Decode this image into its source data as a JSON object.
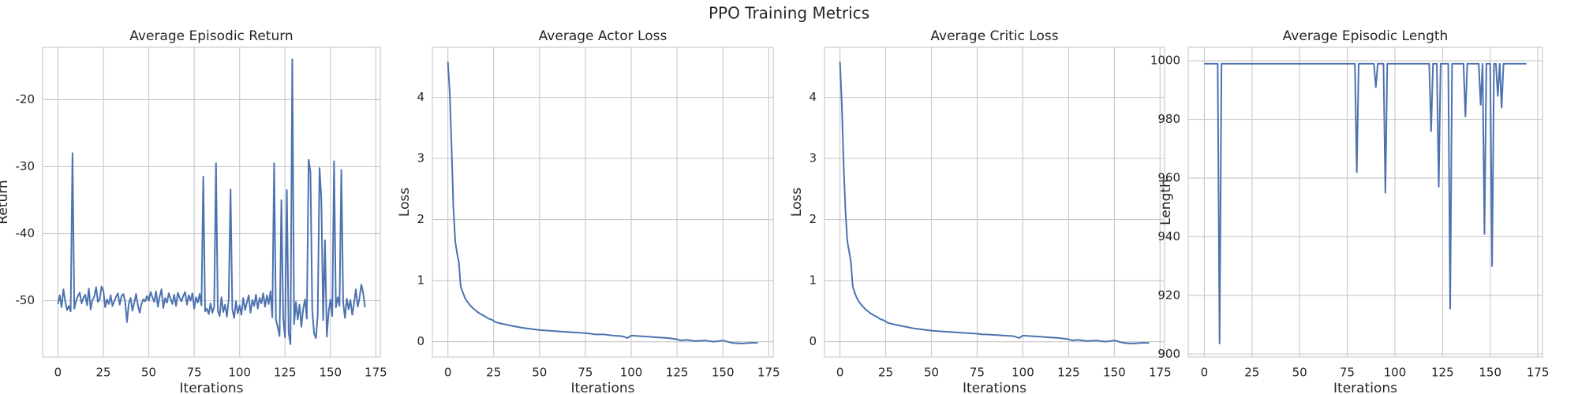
{
  "title": "PPO Training Metrics",
  "chart_data": [
    {
      "type": "line",
      "title": "Average Episodic Return",
      "xlabel": "Iterations",
      "ylabel": "Return",
      "xlim": [
        -8.45,
        177.45
      ],
      "xticks": [
        0,
        25,
        50,
        75,
        100,
        125,
        150,
        175
      ],
      "ylim": [
        -58.4,
        -12.2
      ],
      "yticks": [
        -50,
        -40,
        -30,
        -20
      ],
      "grid": true,
      "x": [
        0,
        1,
        2,
        3,
        4,
        5,
        6,
        7,
        8,
        9,
        10,
        11,
        12,
        13,
        14,
        15,
        16,
        17,
        18,
        19,
        20,
        21,
        22,
        23,
        24,
        25,
        26,
        27,
        28,
        29,
        30,
        31,
        32,
        33,
        34,
        35,
        36,
        37,
        38,
        39,
        40,
        41,
        42,
        43,
        44,
        45,
        46,
        47,
        48,
        49,
        50,
        51,
        52,
        53,
        54,
        55,
        56,
        57,
        58,
        59,
        60,
        61,
        62,
        63,
        64,
        65,
        66,
        67,
        68,
        69,
        70,
        71,
        72,
        73,
        74,
        75,
        76,
        77,
        78,
        79,
        80,
        81,
        82,
        83,
        84,
        85,
        86,
        87,
        88,
        89,
        90,
        91,
        92,
        93,
        94,
        95,
        96,
        97,
        98,
        99,
        100,
        101,
        102,
        103,
        104,
        105,
        106,
        107,
        108,
        109,
        110,
        111,
        112,
        113,
        114,
        115,
        116,
        117,
        118,
        119,
        120,
        121,
        122,
        123,
        124,
        125,
        126,
        127,
        128,
        129,
        130,
        131,
        132,
        133,
        134,
        135,
        136,
        137,
        138,
        139,
        140,
        141,
        142,
        143,
        144,
        145,
        146,
        147,
        148,
        149,
        150,
        151,
        152,
        153,
        154,
        155,
        156,
        157,
        158,
        159,
        160,
        161,
        162,
        163,
        164,
        165,
        166,
        167,
        168,
        169
      ],
      "series": [
        {
          "color": "#4c72b0",
          "values": [
            -50.5,
            -49.2,
            -51.0,
            -48.3,
            -50.1,
            -51.4,
            -50.8,
            -51.6,
            -28.0,
            -51.2,
            -50.0,
            -49.3,
            -48.8,
            -50.4,
            -49.6,
            -49.1,
            -50.7,
            -48.2,
            -51.3,
            -49.9,
            -49.4,
            -48.0,
            -50.2,
            -49.7,
            -47.9,
            -48.5,
            -51.0,
            -49.8,
            -50.5,
            -49.2,
            -50.8,
            -50.1,
            -49.4,
            -48.9,
            -50.6,
            -49.3,
            -49.0,
            -50.2,
            -53.2,
            -50.4,
            -49.6,
            -51.5,
            -50.3,
            -49.0,
            -50.7,
            -51.8,
            -50.5,
            -49.8,
            -50.1,
            -49.3,
            -50.0,
            -48.7,
            -49.5,
            -50.2,
            -48.6,
            -50.9,
            -49.4,
            -48.3,
            -51.1,
            -49.6,
            -50.3,
            -48.9,
            -49.7,
            -50.5,
            -49.1,
            -50.8,
            -48.8,
            -49.6,
            -50.1,
            -49.3,
            -48.7,
            -50.6,
            -49.2,
            -50.0,
            -48.9,
            -51.2,
            -49.5,
            -50.3,
            -49.0,
            -50.7,
            -31.5,
            -51.6,
            -51.2,
            -52.0,
            -50.4,
            -51.8,
            -50.9,
            -29.5,
            -51.5,
            -52.3,
            -49.5,
            -51.7,
            -50.6,
            -52.4,
            -49.8,
            -33.4,
            -51.3,
            -52.6,
            -50.1,
            -51.9,
            -50.7,
            -52.1,
            -49.6,
            -51.4,
            -50.3,
            -49.2,
            -51.8,
            -49.9,
            -50.8,
            -49.1,
            -51.2,
            -49.6,
            -50.4,
            -48.9,
            -50.9,
            -49.2,
            -50.5,
            -48.6,
            -52.5,
            -29.5,
            -52.8,
            -54.0,
            -55.3,
            -35.0,
            -52.6,
            -55.5,
            -33.5,
            -54.8,
            -56.5,
            -14.0,
            -53.5,
            -50.2,
            -52.8,
            -50.6,
            -53.9,
            -51.2,
            -49.8,
            -52.7,
            -29.0,
            -30.8,
            -51.5,
            -54.9,
            -55.6,
            -52.2,
            -30.2,
            -34.8,
            -52.9,
            -41.0,
            -55.4,
            -51.7,
            -49.8,
            -52.3,
            -29.2,
            -51.0,
            -49.5,
            -50.8,
            -30.5,
            -50.2,
            -52.6,
            -49.7,
            -51.3,
            -49.9,
            -52.1,
            -50.4,
            -48.3,
            -50.9,
            -49.6,
            -47.6,
            -48.8,
            -51.0
          ]
        }
      ]
    },
    {
      "type": "line",
      "title": "Average Actor Loss",
      "xlabel": "Iterations",
      "ylabel": "Loss",
      "xlim": [
        -8.45,
        177.45
      ],
      "xticks": [
        0,
        25,
        50,
        75,
        100,
        125,
        150,
        175
      ],
      "ylim": [
        -0.25,
        4.82
      ],
      "yticks": [
        0,
        1,
        2,
        3,
        4
      ],
      "grid": true,
      "x": [
        0,
        1,
        2,
        3,
        4,
        5,
        6,
        7,
        8,
        9,
        10,
        12,
        14,
        16,
        18,
        20,
        22,
        24,
        26,
        30,
        35,
        40,
        45,
        50,
        55,
        60,
        65,
        70,
        75,
        78,
        80,
        85,
        90,
        95,
        98,
        100,
        105,
        110,
        115,
        120,
        125,
        127,
        130,
        135,
        140,
        145,
        150,
        155,
        160,
        165,
        169
      ],
      "series": [
        {
          "color": "#4c72b0",
          "values": [
            4.58,
            4.1,
            3.2,
            2.2,
            1.65,
            1.45,
            1.3,
            0.9,
            0.82,
            0.74,
            0.68,
            0.6,
            0.54,
            0.49,
            0.45,
            0.42,
            0.38,
            0.36,
            0.32,
            0.29,
            0.26,
            0.23,
            0.21,
            0.19,
            0.18,
            0.17,
            0.16,
            0.15,
            0.14,
            0.13,
            0.12,
            0.12,
            0.1,
            0.09,
            0.06,
            0.1,
            0.09,
            0.08,
            0.07,
            0.06,
            0.04,
            0.02,
            0.03,
            0.01,
            0.02,
            0.0,
            0.02,
            -0.02,
            -0.03,
            -0.02,
            -0.02
          ]
        }
      ]
    },
    {
      "type": "line",
      "title": "Average Critic Loss",
      "xlabel": "Iterations",
      "ylabel": "Loss",
      "xlim": [
        -8.45,
        177.45
      ],
      "xticks": [
        0,
        25,
        50,
        75,
        100,
        125,
        150,
        175
      ],
      "ylim": [
        -0.25,
        4.82
      ],
      "yticks": [
        0,
        1,
        2,
        3,
        4
      ],
      "grid": true,
      "x": [
        0,
        1,
        2,
        3,
        4,
        5,
        6,
        7,
        8,
        9,
        10,
        12,
        14,
        16,
        18,
        20,
        22,
        24,
        26,
        30,
        35,
        40,
        45,
        50,
        55,
        60,
        65,
        70,
        75,
        78,
        80,
        85,
        90,
        95,
        98,
        100,
        105,
        110,
        115,
        120,
        125,
        127,
        130,
        135,
        140,
        145,
        150,
        155,
        160,
        165,
        169
      ],
      "series": [
        {
          "color": "#4c72b0",
          "values": [
            4.58,
            3.9,
            2.9,
            2.15,
            1.65,
            1.48,
            1.3,
            0.9,
            0.81,
            0.73,
            0.67,
            0.59,
            0.53,
            0.48,
            0.44,
            0.41,
            0.37,
            0.35,
            0.31,
            0.28,
            0.25,
            0.22,
            0.2,
            0.18,
            0.17,
            0.16,
            0.15,
            0.14,
            0.13,
            0.12,
            0.12,
            0.11,
            0.1,
            0.09,
            0.06,
            0.1,
            0.09,
            0.08,
            0.07,
            0.06,
            0.04,
            0.02,
            0.03,
            0.01,
            0.02,
            0.0,
            0.02,
            -0.02,
            -0.03,
            -0.02,
            -0.02
          ]
        }
      ]
    },
    {
      "type": "line",
      "title": "Average Episodic Length",
      "xlabel": "Iterations",
      "ylabel": "Length",
      "xlim": [
        -8.45,
        177.45
      ],
      "xticks": [
        0,
        25,
        50,
        75,
        100,
        125,
        150,
        175
      ],
      "ylim": [
        899.0,
        1004.6
      ],
      "yticks": [
        900,
        920,
        940,
        960,
        980,
        1000
      ],
      "grid": true,
      "x": [
        0,
        7,
        8,
        9,
        79,
        80,
        81,
        89,
        90,
        91,
        94,
        95,
        96,
        118,
        119,
        120,
        122,
        123,
        124,
        128,
        129,
        130,
        136,
        137,
        138,
        144,
        145,
        146,
        147,
        148,
        150,
        151,
        152,
        153,
        154,
        155,
        156,
        157,
        169
      ],
      "series": [
        {
          "color": "#4c72b0",
          "values": [
            999,
            999,
            903.6,
            999,
            999,
            962,
            999,
            999,
            991,
            999,
            999,
            955,
            999,
            999,
            976,
            999,
            999,
            957,
            999,
            999,
            915.5,
            999,
            999,
            981,
            999,
            999,
            985,
            999,
            941,
            999,
            999,
            930,
            999,
            999,
            988,
            999,
            984,
            999,
            999
          ]
        }
      ]
    }
  ]
}
